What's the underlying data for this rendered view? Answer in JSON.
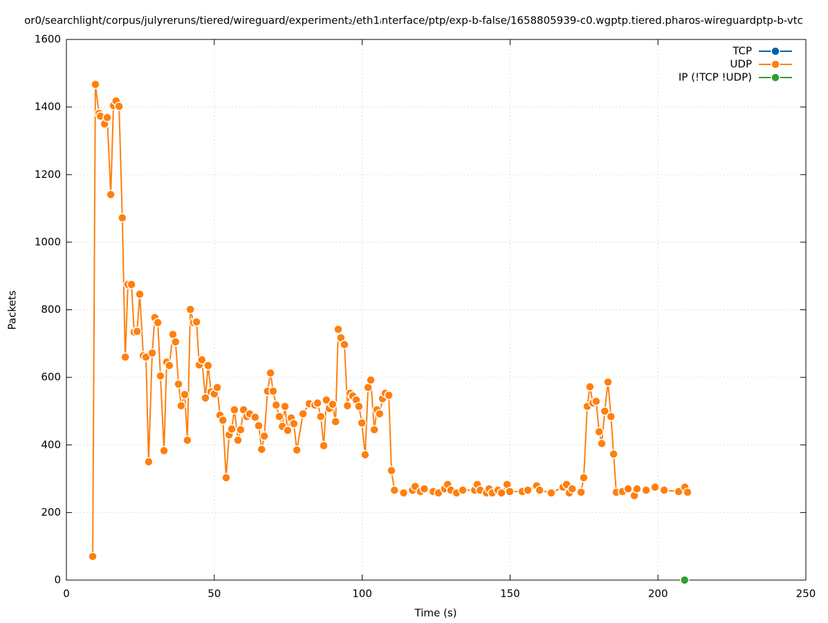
{
  "chart_data": {
    "type": "line",
    "title": "or0/searchlight/corpus/julyreruns/tiered/wireguard/experiment₂/eth1ᵢnterface/ptp/exp-b-false/1658805939-c0.wgptp.tiered.pharos-wireguardptp-b-vtc",
    "x_label": "Time (s)",
    "y_label": "Packets",
    "xlim": [
      0,
      250
    ],
    "xticks": [
      0,
      50,
      100,
      150,
      200,
      250
    ],
    "ylim": [
      0,
      1600
    ],
    "yticks": [
      0,
      200,
      400,
      600,
      800,
      1000,
      1200,
      1400,
      1600
    ],
    "grid": true,
    "legend": "upper right",
    "series": [
      {
        "name": "TCP",
        "color": "#0060ad",
        "x": [],
        "values": []
      },
      {
        "name": "UDP",
        "color": "#ff7f0e",
        "x": [
          8.9,
          9.8,
          11,
          11.5,
          12.9,
          13.8,
          15,
          15.9,
          16.8,
          17.8,
          18.9,
          19.9,
          20.8,
          22,
          22.9,
          23.9,
          24.8,
          26,
          26.9,
          27.8,
          29,
          29.9,
          30.9,
          31.8,
          33,
          33.9,
          34.8,
          36,
          36.9,
          37.9,
          38.8,
          40,
          40.9,
          41.9,
          43,
          44,
          44.9,
          45.8,
          47,
          47.9,
          48.9,
          50,
          51,
          51.9,
          52.9,
          54,
          55,
          55.9,
          56.8,
          58,
          58.9,
          59.9,
          61,
          62,
          63.8,
          65,
          66,
          66.9,
          68,
          69,
          69.9,
          70.9,
          72,
          73,
          73.9,
          74.8,
          76,
          76.9,
          77.9,
          80,
          82.1,
          84,
          84.9,
          86,
          87,
          87.9,
          88.9,
          90,
          91,
          91.9,
          92.8,
          94,
          95,
          95.9,
          96.8,
          98,
          98.9,
          99.9,
          101,
          102,
          102.9,
          104.1,
          105,
          105.9,
          106.9,
          107.8,
          109,
          109.9,
          110.9,
          114,
          117,
          117.9,
          119.7,
          121,
          124,
          125.8,
          127.9,
          128.9,
          130,
          131.9,
          134,
          138,
          138.9,
          139.9,
          142,
          142.9,
          144,
          145.9,
          147.1,
          149,
          149.9,
          154.1,
          156,
          159,
          160,
          163.9,
          167.9,
          169.1,
          170,
          171,
          174,
          174.9,
          176.1,
          177,
          178,
          179.1,
          180.1,
          181,
          182,
          183.1,
          184.1,
          185,
          185.9,
          188,
          189.9,
          192,
          192.9,
          196,
          199,
          202.1,
          207,
          209.1,
          210
        ],
        "values": [
          70,
          1467,
          1381,
          1373,
          1350,
          1369,
          1141,
          1404,
          1418,
          1402,
          1072,
          660,
          875,
          875,
          734,
          736,
          846,
          664,
          660,
          350,
          672,
          777,
          762,
          604,
          383,
          645,
          635,
          727,
          705,
          580,
          516,
          549,
          414,
          801,
          762,
          764,
          637,
          652,
          539,
          635,
          557,
          551,
          570,
          488,
          473,
          303,
          430,
          447,
          504,
          414,
          445,
          504,
          484,
          492,
          482,
          457,
          387,
          426,
          559,
          613,
          559,
          518,
          484,
          455,
          514,
          443,
          480,
          463,
          385,
          492,
          522,
          518,
          524,
          484,
          398,
          533,
          508,
          520,
          469,
          742,
          717,
          697,
          516,
          553,
          545,
          533,
          514,
          465,
          371,
          570,
          592,
          445,
          504,
          492,
          537,
          553,
          547,
          324,
          266,
          258,
          266,
          277,
          262,
          270,
          262,
          258,
          270,
          283,
          266,
          258,
          266,
          266,
          283,
          266,
          258,
          270,
          258,
          266,
          258,
          283,
          262,
          262,
          266,
          279,
          266,
          258,
          275,
          283,
          258,
          270,
          260,
          303,
          514,
          572,
          524,
          529,
          439,
          404,
          500,
          586,
          484,
          373,
          260,
          262,
          270,
          250,
          270,
          266,
          275,
          266,
          262,
          275,
          260
        ]
      },
      {
        "name": "IP (!TCP  !UDP)",
        "color": "#2ca02c",
        "x": [
          209
        ],
        "values": [
          0
        ]
      }
    ]
  }
}
